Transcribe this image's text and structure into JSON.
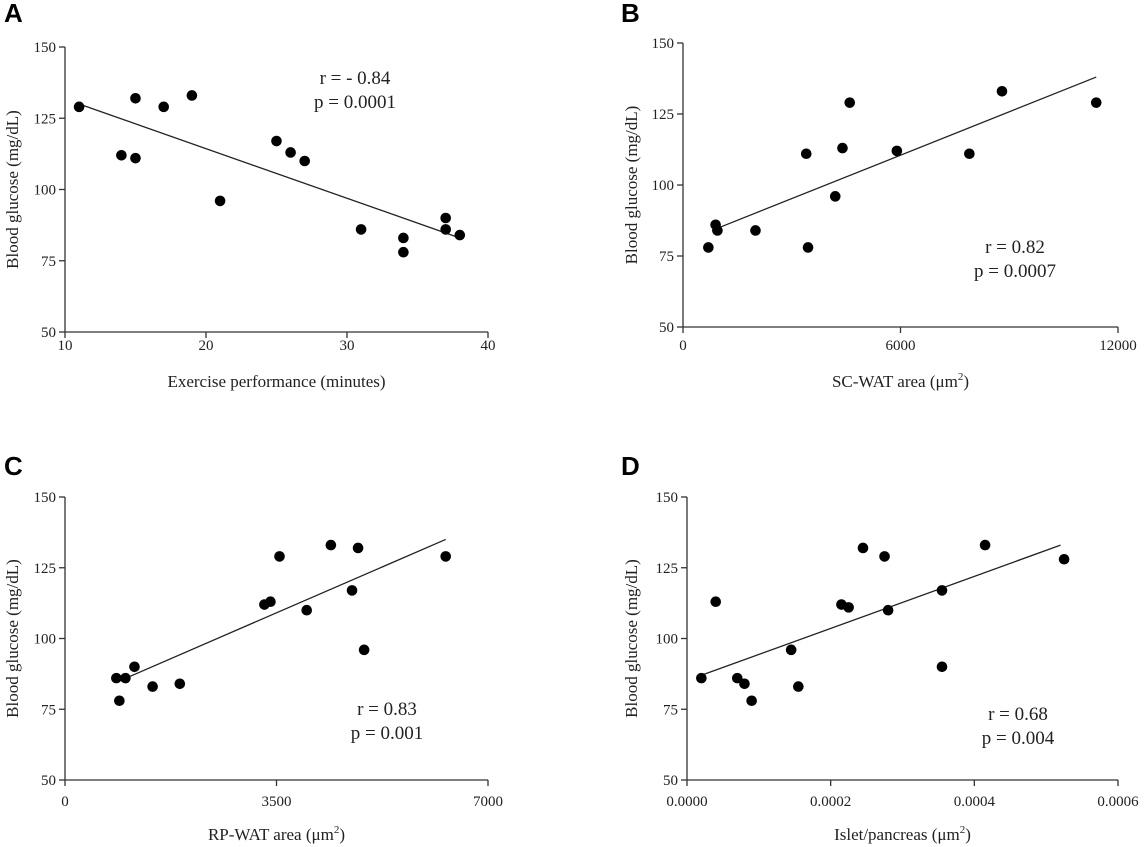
{
  "chart_data": [
    {
      "panel": "A",
      "type": "scatter",
      "xlabel": "Exercise performance (minutes)",
      "ylabel": "Blood glucose (mg/dL)",
      "xlim": [
        10,
        40
      ],
      "ylim": [
        50,
        150
      ],
      "xticks": [
        "10",
        "20",
        "30",
        "40"
      ],
      "yticks": [
        "50",
        "75",
        "100",
        "125",
        "150"
      ],
      "annotation": [
        "r = - 0.84",
        "p = 0.0001"
      ],
      "trendline": [
        [
          11,
          130
        ],
        [
          38,
          83
        ]
      ],
      "x": [
        11,
        14,
        15,
        15,
        17,
        19,
        21,
        25,
        26,
        27,
        31,
        34,
        34,
        37,
        37,
        38
      ],
      "y": [
        129,
        112,
        111,
        132,
        129,
        133,
        96,
        117,
        113,
        110,
        86,
        83,
        78,
        90,
        86,
        84
      ]
    },
    {
      "panel": "B",
      "type": "scatter",
      "xlabel": "SC-WAT area (μm",
      "xlabel_sup": "2",
      "xlabel_end": ")",
      "ylabel": "Blood glucose (mg/dL)",
      "xlim": [
        0,
        12000
      ],
      "ylim": [
        50,
        150
      ],
      "xticks": [
        "0",
        "6000",
        "12000"
      ],
      "yticks": [
        "50",
        "75",
        "100",
        "125",
        "150"
      ],
      "annotation": [
        "r = 0.82",
        "p = 0.0007"
      ],
      "trendline": [
        [
          800,
          84
        ],
        [
          11400,
          138
        ]
      ],
      "x": [
        700,
        900,
        950,
        2000,
        3400,
        3450,
        4200,
        4400,
        4600,
        5900,
        7900,
        8800,
        11400
      ],
      "y": [
        78,
        86,
        84,
        84,
        111,
        78,
        96,
        113,
        129,
        112,
        111,
        133,
        129
      ]
    },
    {
      "panel": "C",
      "type": "scatter",
      "xlabel": "RP-WAT area (μm",
      "xlabel_sup": "2",
      "xlabel_end": ")",
      "ylabel": "Blood glucose (mg/dL)",
      "xlim": [
        0,
        7000
      ],
      "ylim": [
        50,
        150
      ],
      "xticks": [
        "0",
        "3500",
        "7000"
      ],
      "yticks": [
        "50",
        "75",
        "100",
        "125",
        "150"
      ],
      "annotation": [
        "r = 0.83",
        "p = 0.001"
      ],
      "trendline": [
        [
          900,
          85
        ],
        [
          6300,
          135
        ]
      ],
      "x": [
        850,
        900,
        1000,
        1150,
        1450,
        1900,
        3300,
        3400,
        3550,
        4000,
        4400,
        4750,
        4850,
        4950,
        6300
      ],
      "y": [
        86,
        78,
        86,
        90,
        83,
        84,
        112,
        113,
        129,
        110,
        133,
        117,
        132,
        96,
        129
      ]
    },
    {
      "panel": "D",
      "type": "scatter",
      "xlabel": "Islet/pancreas (μm",
      "xlabel_sup": "2",
      "xlabel_end": ")",
      "ylabel": "Blood glucose (mg/dL)",
      "xlim": [
        0,
        0.0006
      ],
      "ylim": [
        50,
        150
      ],
      "xticks": [
        "0.0000",
        "0.0002",
        "0.0004",
        "0.0006"
      ],
      "yticks": [
        "50",
        "75",
        "100",
        "125",
        "150"
      ],
      "annotation": [
        "r = 0.68",
        "p = 0.004"
      ],
      "trendline": [
        [
          2e-05,
          87
        ],
        [
          0.00052,
          133
        ]
      ],
      "x": [
        2e-05,
        4e-05,
        7e-05,
        8e-05,
        9e-05,
        0.000145,
        0.000155,
        0.000215,
        0.000225,
        0.000245,
        0.000275,
        0.00028,
        0.000355,
        0.000355,
        0.000415,
        0.000525
      ],
      "y": [
        86,
        113,
        86,
        84,
        78,
        96,
        83,
        112,
        111,
        132,
        129,
        110,
        117,
        90,
        133,
        128
      ]
    }
  ]
}
